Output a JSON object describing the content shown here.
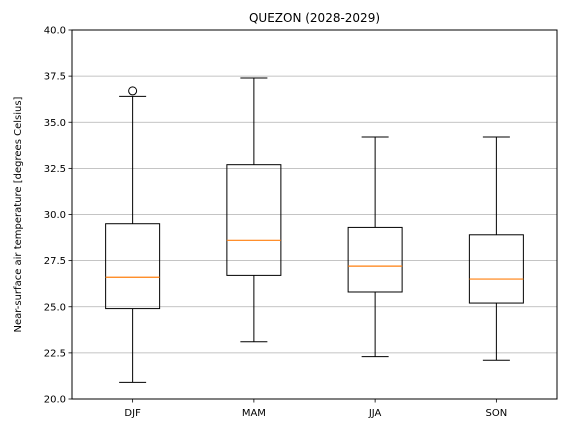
{
  "chart_data": {
    "type": "box",
    "title": "QUEZON (2028-2029)",
    "xlabel": "",
    "ylabel": "Near-surface air temperature [degrees Celsius]",
    "ylim": [
      20.0,
      40.0
    ],
    "yticks": [
      20.0,
      22.5,
      25.0,
      27.5,
      30.0,
      32.5,
      35.0,
      37.5,
      40.0
    ],
    "ytick_labels": [
      "20.0",
      "22.5",
      "25.0",
      "27.5",
      "30.0",
      "32.5",
      "35.0",
      "37.5",
      "40.0"
    ],
    "grid": "y-major",
    "categories": [
      "DJF",
      "MAM",
      "JJA",
      "SON"
    ],
    "boxes": [
      {
        "category": "DJF",
        "whisker_low": 20.9,
        "q1": 24.9,
        "median": 26.6,
        "q3": 29.5,
        "whisker_high": 36.4,
        "outliers": [
          36.7
        ]
      },
      {
        "category": "MAM",
        "whisker_low": 23.1,
        "q1": 26.7,
        "median": 28.6,
        "q3": 32.7,
        "whisker_high": 37.4,
        "outliers": []
      },
      {
        "category": "JJA",
        "whisker_low": 22.3,
        "q1": 25.8,
        "median": 27.2,
        "q3": 29.3,
        "whisker_high": 34.2,
        "outliers": []
      },
      {
        "category": "SON",
        "whisker_low": 22.1,
        "q1": 25.2,
        "median": 26.5,
        "q3": 28.9,
        "whisker_high": 34.2,
        "outliers": []
      }
    ],
    "colors": {
      "box": "#000000",
      "median": "#ff7f0e",
      "grid": "#b0b0b0"
    }
  }
}
